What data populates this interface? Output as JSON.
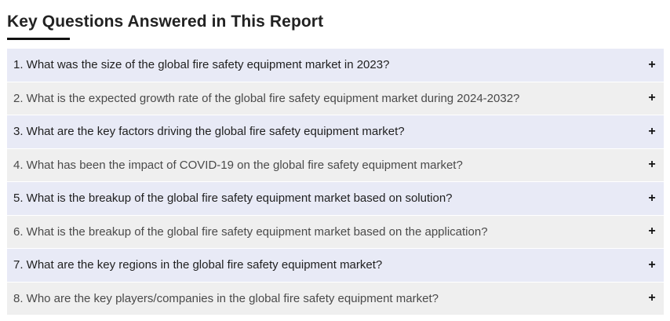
{
  "section": {
    "title": "Key Questions Answered in This Report"
  },
  "faq": {
    "items": [
      {
        "question": "1. What was the size of the global fire safety equipment market in 2023?",
        "toggle": "+"
      },
      {
        "question": "2. What is the expected growth rate of the global fire safety equipment market during 2024-2032?",
        "toggle": "+"
      },
      {
        "question": "3. What are the key factors driving the global fire safety equipment market?",
        "toggle": "+"
      },
      {
        "question": "4. What has been the impact of COVID-19 on the global fire safety equipment market?",
        "toggle": "+"
      },
      {
        "question": "5. What is the breakup of the global fire safety equipment market based on solution?",
        "toggle": "+"
      },
      {
        "question": "6. What is the breakup of the global fire safety equipment market based on the application?",
        "toggle": "+"
      },
      {
        "question": "7. What are the key regions in the global fire safety equipment market?",
        "toggle": "+"
      },
      {
        "question": "8. Who are the key players/companies in the global fire safety equipment market?",
        "toggle": "+"
      }
    ]
  },
  "colors": {
    "odd_row_bg": "#e8eaf6",
    "even_row_bg": "#efefef",
    "title_color": "#222222",
    "underline_color": "#111111"
  },
  "icons": {
    "toggle_icon": "plus-icon"
  }
}
